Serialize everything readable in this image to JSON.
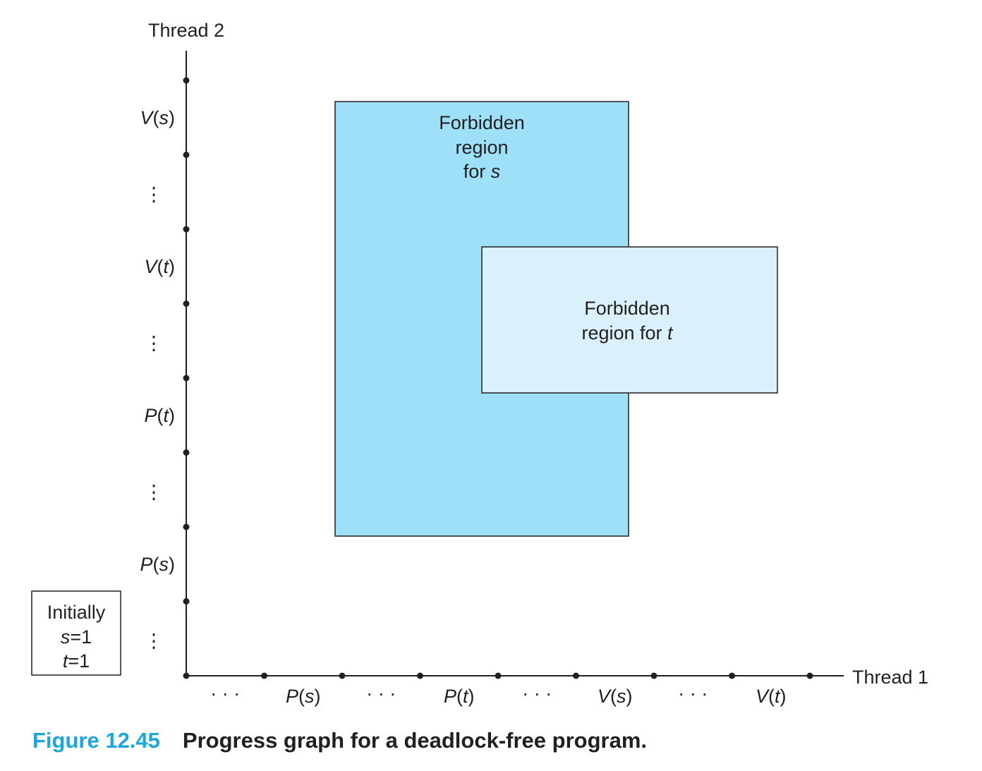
{
  "axes": {
    "y_label": "Thread 2",
    "x_label": "Thread 1"
  },
  "x_ticks": [
    {
      "fn": "",
      "arg": "",
      "ellipsis": "· · ·"
    },
    {
      "fn": "P",
      "arg": "s"
    },
    {
      "fn": "",
      "arg": "",
      "ellipsis": "· · ·"
    },
    {
      "fn": "P",
      "arg": "t"
    },
    {
      "fn": "",
      "arg": "",
      "ellipsis": "· · ·"
    },
    {
      "fn": "V",
      "arg": "s"
    },
    {
      "fn": "",
      "arg": "",
      "ellipsis": "· · ·"
    },
    {
      "fn": "V",
      "arg": "t"
    }
  ],
  "y_ticks": [
    {
      "ellipsis": "⋮"
    },
    {
      "fn": "P",
      "arg": "s"
    },
    {
      "ellipsis": "⋮"
    },
    {
      "fn": "P",
      "arg": "t"
    },
    {
      "ellipsis": "⋮"
    },
    {
      "fn": "V",
      "arg": "t"
    },
    {
      "ellipsis": "⋮"
    },
    {
      "fn": "V",
      "arg": "s"
    }
  ],
  "regions": {
    "s": {
      "lines": [
        "Forbidden",
        "region",
        "for "
      ],
      "var": "s",
      "color": "#9de0f8"
    },
    "t": {
      "lines": [
        "Forbidden",
        "region for "
      ],
      "var": "t",
      "color": "#daf1fb"
    }
  },
  "initial_box": {
    "title": "Initially",
    "s_var": "s",
    "s_val": "=1",
    "t_var": "t",
    "t_val": "=1"
  },
  "caption": {
    "number": "Figure 12.45",
    "text": "Progress graph for a deadlock-free program."
  }
}
